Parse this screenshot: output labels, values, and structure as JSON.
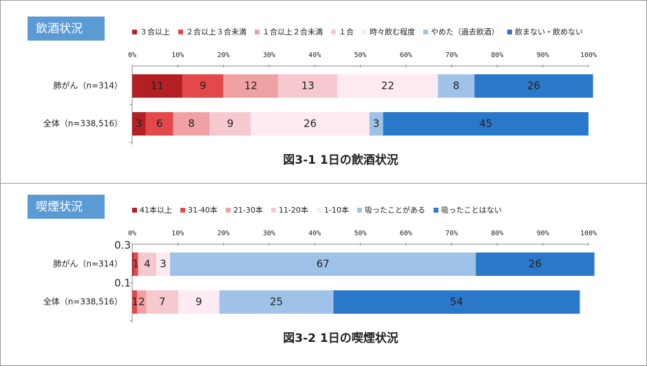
{
  "chart_data": [
    {
      "type": "stacked-bar-100",
      "badge": "飲酒状況",
      "caption": "図3-1 1日の飲酒状況",
      "categories": [
        "肺がん（n=314）",
        "全体（n=338,516）"
      ],
      "xlim": [
        0,
        100
      ],
      "xticks": [
        {
          "value": 0,
          "label": "0%"
        },
        {
          "value": 10,
          "label": "10%"
        },
        {
          "value": 20,
          "label": "20%"
        },
        {
          "value": 30,
          "label": "30%"
        },
        {
          "value": 40,
          "label": "40%"
        },
        {
          "value": 50,
          "label": "50%"
        },
        {
          "value": 60,
          "label": "60%"
        },
        {
          "value": 70,
          "label": "70%"
        },
        {
          "value": 80,
          "label": "80%"
        },
        {
          "value": 90,
          "label": "90%"
        },
        {
          "value": 100,
          "label": "100%"
        }
      ],
      "series": [
        {
          "name": "３合以上",
          "color": "#b41f24",
          "values": [
            11,
            3
          ]
        },
        {
          "name": "２合以上３合未満",
          "color": "#e3484a",
          "values": [
            9,
            6
          ]
        },
        {
          "name": "１合以上２合未満",
          "color": "#f0a1a3",
          "values": [
            12,
            8
          ]
        },
        {
          "name": "１合",
          "color": "#f6c9cf",
          "values": [
            13,
            9
          ]
        },
        {
          "name": "時々飲む程度",
          "color": "#fdeaf2",
          "values": [
            22,
            26
          ]
        },
        {
          "name": "やめた（過去飲酒）",
          "color": "#9fc3e8",
          "values": [
            8,
            3
          ]
        },
        {
          "name": "飲まない・飲めない",
          "color": "#2a78c9",
          "values": [
            26,
            45
          ]
        }
      ]
    },
    {
      "type": "stacked-bar-100",
      "badge": "喫煙状況",
      "caption": "図3-2 1日の喫煙状況",
      "categories": [
        "肺がん（n=314）",
        "全体（n=338,516）"
      ],
      "xlim": [
        0,
        100
      ],
      "xticks": [
        {
          "value": 0,
          "label": "0%"
        },
        {
          "value": 10,
          "label": "10%"
        },
        {
          "value": 20,
          "label": "20%"
        },
        {
          "value": 30,
          "label": "30%"
        },
        {
          "value": 40,
          "label": "40%"
        },
        {
          "value": 50,
          "label": "50%"
        },
        {
          "value": 60,
          "label": "60%"
        },
        {
          "value": 70,
          "label": "70%"
        },
        {
          "value": 80,
          "label": "80%"
        },
        {
          "value": 90,
          "label": "90%"
        },
        {
          "value": 100,
          "label": "100%"
        }
      ],
      "series": [
        {
          "name": "41本以上",
          "color": "#b41f24",
          "values": [
            0.3,
            0.1
          ]
        },
        {
          "name": "31-40本",
          "color": "#e3484a",
          "values": [
            1,
            1
          ]
        },
        {
          "name": "21-30本",
          "color": "#f0a1a3",
          "values": [
            null,
            2
          ]
        },
        {
          "name": "11-20本",
          "color": "#f6c9cf",
          "values": [
            4,
            7
          ]
        },
        {
          "name": "1-10本",
          "color": "#fdeaf2",
          "values": [
            3,
            9
          ]
        },
        {
          "name": "吸ったことがある",
          "color": "#9fc3e8",
          "values": [
            67,
            25
          ]
        },
        {
          "name": "吸ったことはない",
          "color": "#2a78c9",
          "values": [
            26,
            54
          ]
        }
      ]
    }
  ]
}
